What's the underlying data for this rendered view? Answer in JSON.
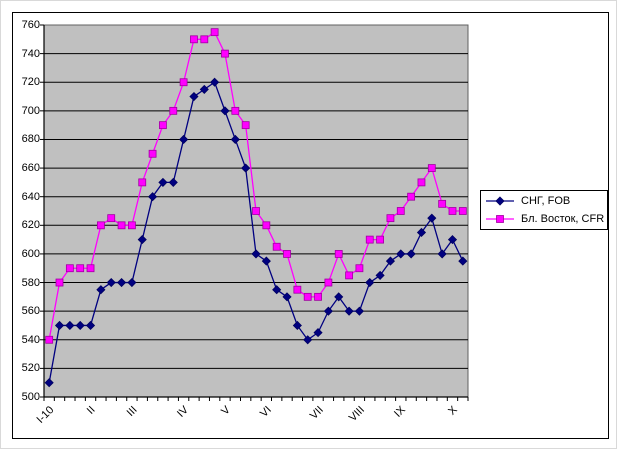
{
  "chart_data": {
    "type": "line",
    "title": "",
    "plot_bg": "#c0c0c0",
    "grid": true,
    "gridline_color": "#000000",
    "plot_border_color": "#606060",
    "axis_color": "#000000",
    "legend_position": "right",
    "x_axis": {
      "n_points": 41,
      "tick_labels": [
        "I-10",
        "II",
        "III",
        "IV",
        "V",
        "VI",
        "VII",
        "VIII",
        "IX",
        "X"
      ],
      "tick_label_indices": [
        0,
        4,
        8,
        13,
        17,
        21,
        26,
        30,
        34,
        39
      ]
    },
    "y_axis": {
      "min": 500,
      "max": 760,
      "step": 20
    },
    "series": [
      {
        "name": "СНГ, FOB",
        "color": "#000080",
        "marker": "diamond",
        "marker_fill": "#000080",
        "marker_border": "#000060",
        "values": [
          510,
          550,
          550,
          550,
          550,
          575,
          580,
          580,
          580,
          610,
          640,
          650,
          650,
          680,
          710,
          715,
          720,
          700,
          680,
          660,
          600,
          595,
          575,
          570,
          550,
          540,
          545,
          560,
          570,
          560,
          560,
          580,
          585,
          595,
          600,
          600,
          615,
          625,
          600,
          610,
          595
        ]
      },
      {
        "name": "Бл. Восток, CFR",
        "color": "#ff00ff",
        "marker": "square",
        "marker_fill": "#ff00ff",
        "marker_border": "#a000a0",
        "values": [
          540,
          580,
          590,
          590,
          590,
          620,
          625,
          620,
          620,
          650,
          670,
          690,
          700,
          720,
          750,
          750,
          755,
          740,
          700,
          690,
          630,
          620,
          605,
          600,
          575,
          570,
          570,
          580,
          600,
          585,
          590,
          610,
          610,
          625,
          630,
          640,
          650,
          660,
          635,
          630,
          630
        ]
      }
    ]
  }
}
